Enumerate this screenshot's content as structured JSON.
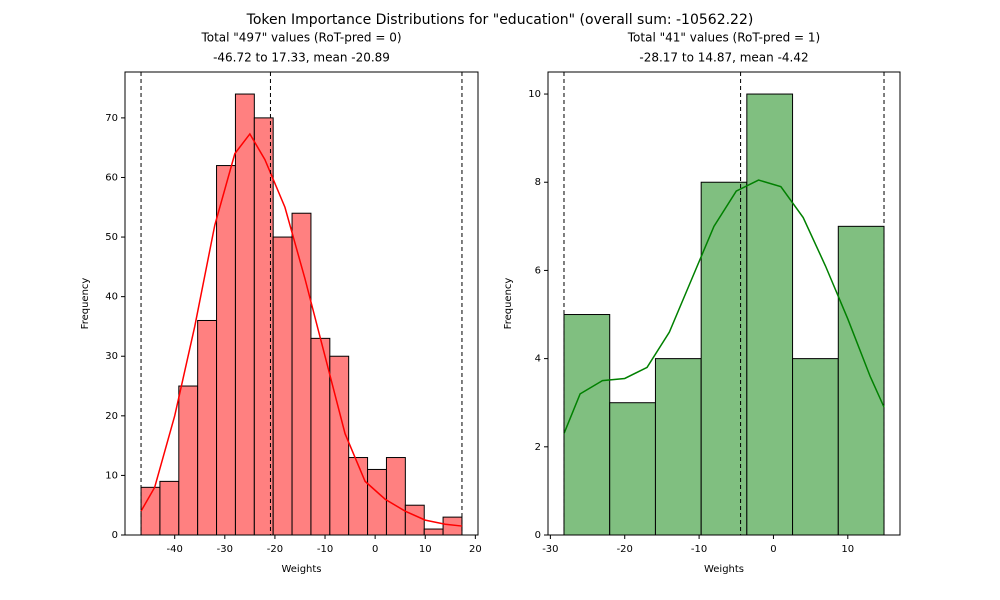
{
  "title": "Token Importance Distributions for \"education\" (overall  sum: -10562.22)",
  "chart_data": [
    {
      "type": "histogram",
      "title": [
        "Total \"497\" values (RoT-pred = 0)",
        "-46.72 to 17.33, mean -20.89"
      ],
      "xlabel": "Weights",
      "ylabel": "Frequency",
      "bins": [
        -46.72,
        -42.95,
        -39.18,
        -35.42,
        -31.65,
        -27.88,
        -24.11,
        -20.35,
        -16.58,
        -12.81,
        -9.04,
        -5.28,
        -1.51,
        2.26,
        6.03,
        9.8,
        13.56,
        17.33
      ],
      "values": [
        8,
        9,
        25,
        36,
        62,
        74,
        70,
        50,
        54,
        33,
        30,
        13,
        11,
        13,
        5,
        1,
        3
      ],
      "color": "#ff8080",
      "edgecolor": "#000000",
      "kde": {
        "color": "#ff0000",
        "x": [
          -46.72,
          -44,
          -40,
          -36,
          -32,
          -28,
          -25,
          -22,
          -18,
          -14,
          -10,
          -6,
          -2,
          2,
          6,
          10,
          14,
          17.33
        ],
        "y": [
          4,
          8,
          20,
          35,
          52,
          64,
          67.3,
          63,
          55,
          43,
          30,
          17,
          9,
          6,
          4,
          2.5,
          1.8,
          1.5
        ]
      },
      "reference_lines": [
        -46.72,
        -20.89,
        17.33
      ],
      "xlim": [
        -49.92,
        20.53
      ],
      "xticks": [
        -40,
        -30,
        -20,
        -10,
        0,
        10,
        20
      ],
      "ylim": [
        0,
        77.7
      ],
      "yticks": [
        0,
        10,
        20,
        30,
        40,
        50,
        60,
        70
      ]
    },
    {
      "type": "histogram",
      "title": [
        "Total \"41\" values (RoT-pred = 1)",
        "-28.17 to 14.87, mean -4.42"
      ],
      "xlabel": "Weights",
      "ylabel": "Frequency",
      "bins": [
        -28.17,
        -22.02,
        -15.87,
        -9.72,
        -3.58,
        2.57,
        8.72,
        14.87
      ],
      "values": [
        5,
        3,
        4,
        8,
        10,
        4,
        7
      ],
      "color": "#80bf80",
      "edgecolor": "#000000",
      "kde": {
        "color": "#008000",
        "x": [
          -28.17,
          -26,
          -23,
          -20,
          -17,
          -14,
          -11,
          -8,
          -5,
          -2,
          1,
          4,
          7,
          10,
          13,
          14.87
        ],
        "y": [
          2.3,
          3.2,
          3.5,
          3.55,
          3.8,
          4.6,
          5.8,
          7,
          7.8,
          8.05,
          7.9,
          7.2,
          6.1,
          4.9,
          3.6,
          2.9
        ]
      },
      "reference_lines": [
        -28.17,
        -4.42,
        14.87
      ],
      "xlim": [
        -30.32,
        17.02
      ],
      "xticks": [
        -30,
        -20,
        -10,
        0,
        10
      ],
      "ylim": [
        0,
        10.5
      ],
      "yticks": [
        0,
        2,
        4,
        6,
        8,
        10
      ]
    }
  ]
}
